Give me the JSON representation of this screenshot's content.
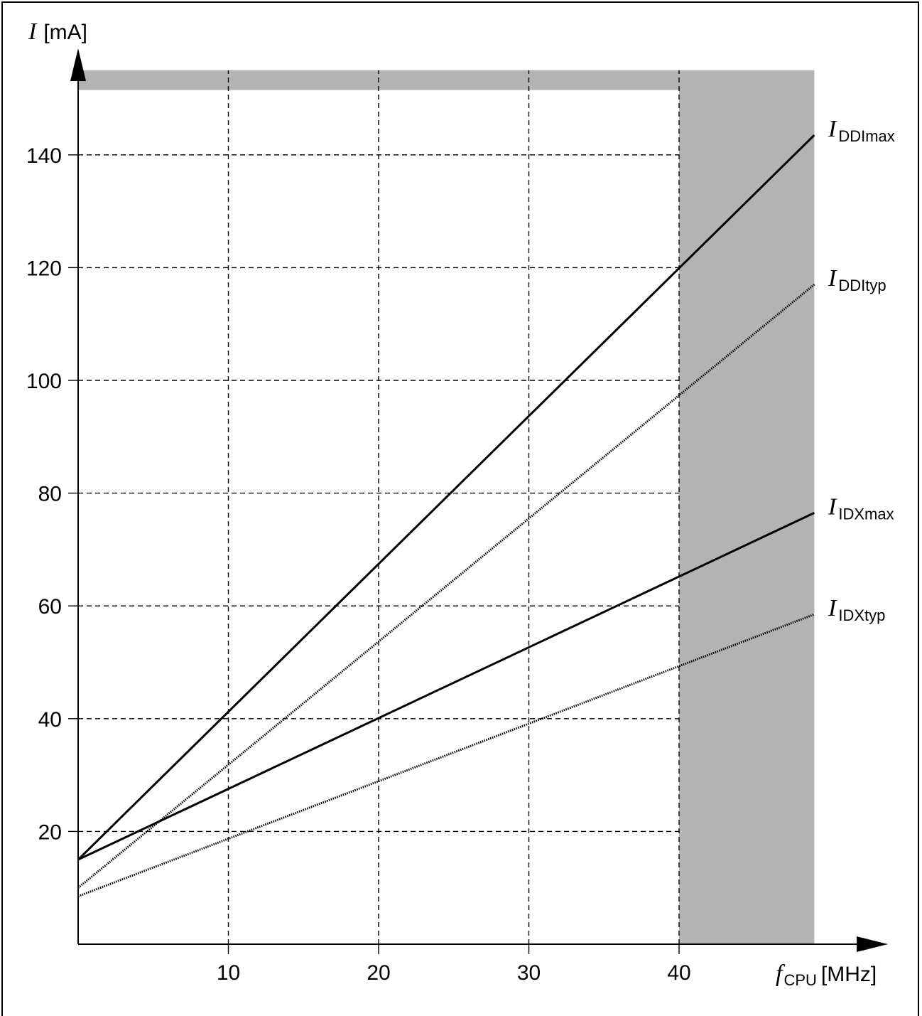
{
  "chart_data": {
    "type": "line",
    "x": [
      0,
      49
    ],
    "series": [
      {
        "name": "IDDImax",
        "values": [
          15,
          143.5
        ],
        "style": "solid"
      },
      {
        "name": "IDDItyp",
        "values": [
          10,
          117
        ],
        "style": "dotted"
      },
      {
        "name": "IDXmax",
        "values": [
          15,
          76.5
        ],
        "style": "solid"
      },
      {
        "name": "IDXtyp",
        "values": [
          8.5,
          58.5
        ],
        "style": "dotted"
      }
    ],
    "series_labels": [
      {
        "main": "I",
        "sub": "DDImax"
      },
      {
        "main": "I",
        "sub": "DDItyp"
      },
      {
        "main": "I",
        "sub": "IDXmax"
      },
      {
        "main": "I",
        "sub": "IDXtyp"
      }
    ],
    "xlabel": {
      "main": "f",
      "sub": "CPU",
      "unit": "[MHz]"
    },
    "ylabel": {
      "main": "I",
      "unit": "[mA]"
    },
    "xticks": [
      "10",
      "20",
      "30",
      "40"
    ],
    "yticks": [
      "20",
      "40",
      "60",
      "80",
      "100",
      "120",
      "140"
    ],
    "xtick_values": [
      10,
      20,
      30,
      40
    ],
    "ytick_values": [
      20,
      40,
      60,
      80,
      100,
      120,
      140
    ],
    "xlim": [
      0,
      49
    ],
    "ylim": [
      0,
      155
    ],
    "grid": true,
    "shaded_regions": [
      {
        "x_from": 40,
        "x_to": 49,
        "y_from": 0,
        "y_to": 155
      },
      {
        "x_from": 0,
        "x_to": 40,
        "y_from": 151.5,
        "y_to": 155
      }
    ],
    "colors": {
      "shade": "#b3b3b3",
      "line": "#000000"
    }
  }
}
